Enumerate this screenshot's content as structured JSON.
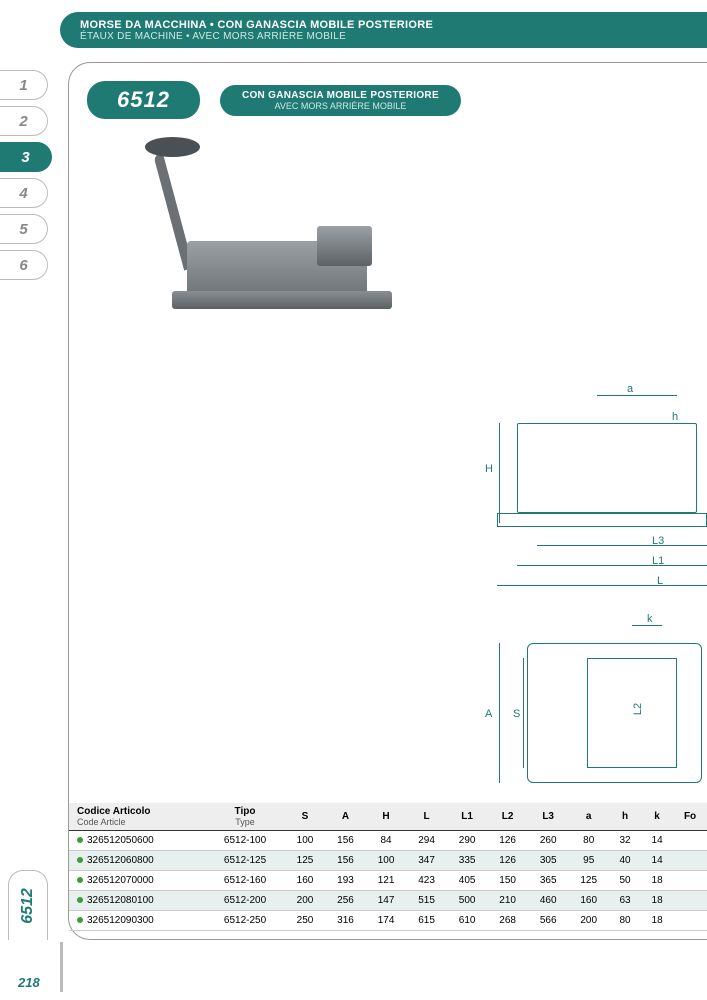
{
  "header": {
    "title_it": "MORSE DA MACCHINA • CON GANASCIA MOBILE POSTERIORE",
    "title_fr": "ÉTAUX DE MACHINE • AVEC MORS ARRIÈRE MOBILE"
  },
  "sideTabs": [
    "1",
    "2",
    "3",
    "4",
    "5",
    "6"
  ],
  "activeTab": "3",
  "product": {
    "code": "6512",
    "desc_it": "CON GANASCIA MOBILE POSTERIORE",
    "desc_fr": "AVEC MORS ARRIÈRE MOBILE"
  },
  "sideLabel": "6512",
  "pageNumber": "218",
  "diagram": {
    "labels": [
      "a",
      "h",
      "H",
      "L3",
      "L1",
      "L",
      "k",
      "A",
      "S",
      "L2"
    ],
    "stroke": "#1f7a73"
  },
  "table": {
    "headers": [
      {
        "it": "Codice Articolo",
        "fr": "Code Article"
      },
      {
        "it": "Tipo",
        "fr": "Type"
      },
      {
        "it": "S"
      },
      {
        "it": "A"
      },
      {
        "it": "H"
      },
      {
        "it": "L"
      },
      {
        "it": "L1"
      },
      {
        "it": "L2"
      },
      {
        "it": "L3"
      },
      {
        "it": "a"
      },
      {
        "it": "h"
      },
      {
        "it": "k"
      },
      {
        "it": "Fo"
      }
    ],
    "rows": [
      {
        "code": "326512050600",
        "type": "6512-100",
        "S": "100",
        "A": "156",
        "H": "84",
        "L": "294",
        "L1": "290",
        "L2": "126",
        "L3": "260",
        "a": "80",
        "h": "32",
        "k": "14"
      },
      {
        "code": "326512060800",
        "type": "6512-125",
        "S": "125",
        "A": "156",
        "H": "100",
        "L": "347",
        "L1": "335",
        "L2": "126",
        "L3": "305",
        "a": "95",
        "h": "40",
        "k": "14"
      },
      {
        "code": "326512070000",
        "type": "6512-160",
        "S": "160",
        "A": "193",
        "H": "121",
        "L": "423",
        "L1": "405",
        "L2": "150",
        "L3": "365",
        "a": "125",
        "h": "50",
        "k": "18"
      },
      {
        "code": "326512080100",
        "type": "6512-200",
        "S": "200",
        "A": "256",
        "H": "147",
        "L": "515",
        "L1": "500",
        "L2": "210",
        "L3": "460",
        "a": "160",
        "h": "63",
        "k": "18"
      },
      {
        "code": "326512090300",
        "type": "6512-250",
        "S": "250",
        "A": "316",
        "H": "174",
        "L": "615",
        "L1": "610",
        "L2": "268",
        "L3": "566",
        "a": "200",
        "h": "80",
        "k": "18"
      }
    ]
  },
  "colors": {
    "teal": "#1f7a73",
    "altRow": "#e8f0ef",
    "bullet": "#3a9d3a"
  }
}
